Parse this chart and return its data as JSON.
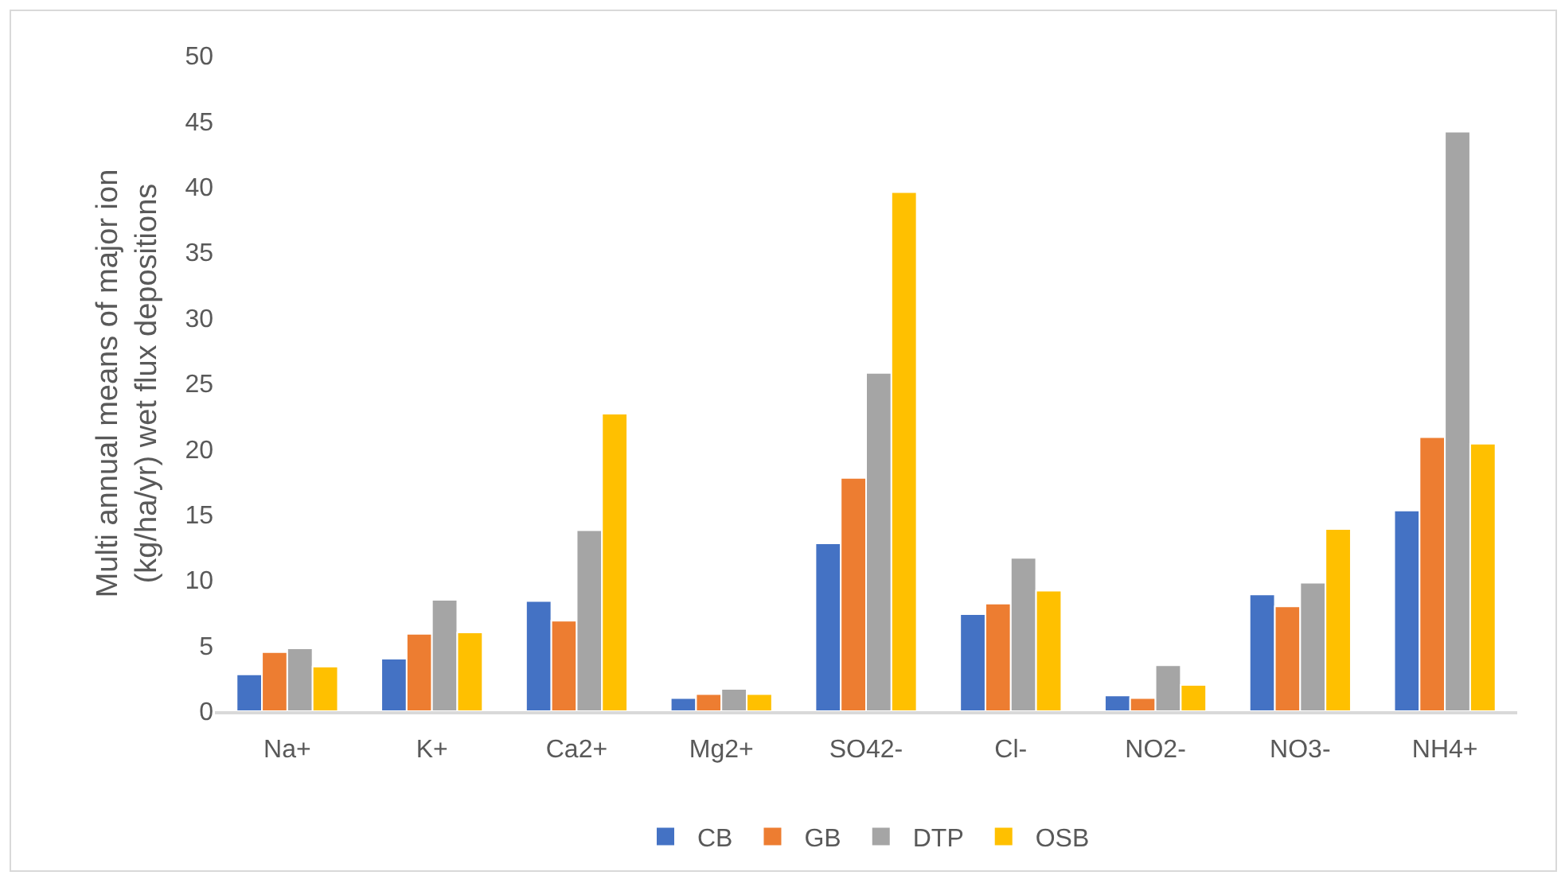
{
  "chart_data": {
    "type": "bar",
    "ylabel": "Multi annual means of major ion (kg/ha/yr) wet flux depositions",
    "categories": [
      "Na+",
      "K+",
      "Ca2+",
      "Mg2+",
      "SO42-",
      "Cl-",
      "NO2-",
      "NO3-",
      "NH4+"
    ],
    "series": [
      {
        "name": "CB",
        "color": "#4472c4",
        "values": [
          2.8,
          4.0,
          8.4,
          1.0,
          12.8,
          7.4,
          1.2,
          8.9,
          15.3
        ]
      },
      {
        "name": "GB",
        "color": "#ed7d31",
        "values": [
          4.5,
          5.9,
          6.9,
          1.3,
          17.8,
          8.2,
          1.0,
          8.0,
          20.9
        ]
      },
      {
        "name": "DTP",
        "color": "#a5a5a5",
        "values": [
          4.8,
          8.5,
          13.8,
          1.7,
          25.8,
          11.7,
          3.5,
          9.8,
          44.2
        ]
      },
      {
        "name": "OSB",
        "color": "#ffc000",
        "values": [
          3.4,
          6.0,
          22.7,
          1.3,
          39.6,
          9.2,
          2.0,
          13.9,
          20.4
        ]
      }
    ],
    "ylim": [
      0,
      50
    ],
    "yticks": [
      0,
      5,
      10,
      15,
      20,
      25,
      30,
      35,
      40,
      45,
      50
    ],
    "grid": false,
    "legend": "bottom"
  }
}
